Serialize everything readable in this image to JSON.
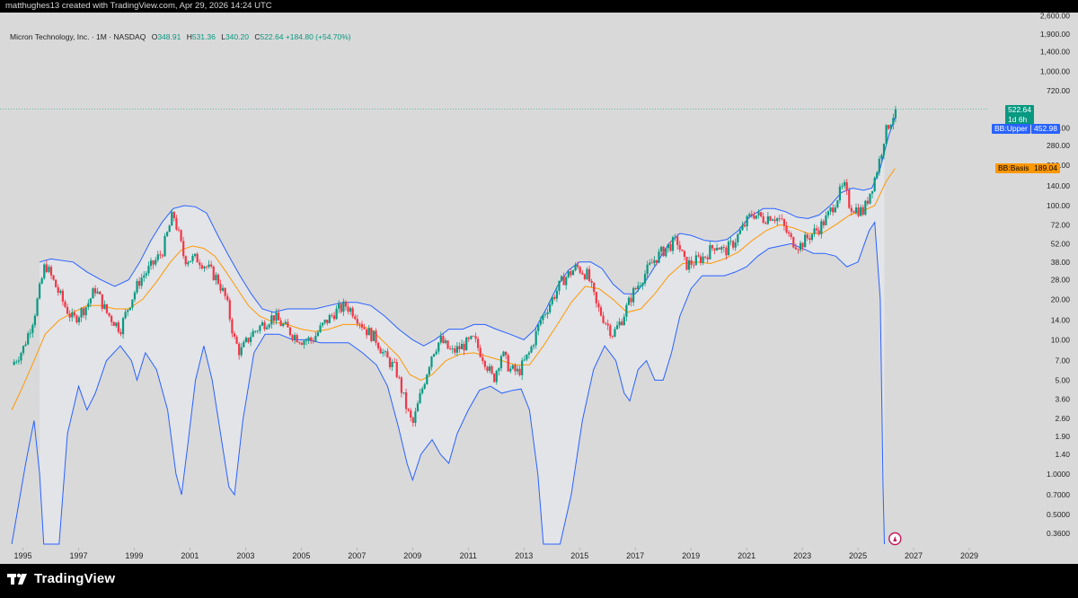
{
  "header": {
    "credit": "matthughes13 created with TradingView.com, Apr 29, 2026 14:24 UTC"
  },
  "legend": {
    "symbol": "Micron Technology, Inc. · 1M · NASDAQ",
    "o_label": "O",
    "o_value": "348.91",
    "h_label": "H",
    "h_value": "531.36",
    "l_label": "L",
    "l_value": "340.20",
    "c_label": "C",
    "c_value": "522.64",
    "change": "+184.80 (+54.70%)"
  },
  "price_tags": {
    "last_price": "522.64",
    "countdown": "1d 6h",
    "bb_upper_label": "BB:Upper",
    "bb_upper_value": "452.98",
    "bb_basis_label": "BB:Basis",
    "bb_basis_value": "189.04"
  },
  "footer": {
    "brand": "TradingView"
  },
  "colors": {
    "background": "#d9d9d9",
    "up": "#089981",
    "down": "#f23645",
    "band_line": "#2962ff",
    "basis_line": "#ff9800",
    "band_fill": "#e3e5ea"
  },
  "chart_data": {
    "type": "candlestick",
    "title": "Micron Technology, Inc. · 1M · NASDAQ",
    "y_scale": "log",
    "ylim": [
      0.3,
      2600
    ],
    "xlim": [
      1994.5,
      2030.0
    ],
    "y_ticks": [
      "2,600.00",
      "1,900.00",
      "1,400.00",
      "1,000.00",
      "720.00",
      "380.00",
      "280.00",
      "200.00",
      "140.00",
      "100.00",
      "72.00",
      "52.00",
      "38.00",
      "28.00",
      "20.00",
      "14.00",
      "10.00",
      "7.00",
      "5.00",
      "3.60",
      "2.60",
      "1.90",
      "1.40",
      "1.0000",
      "0.7000",
      "0.5000",
      "0.3600"
    ],
    "x_ticks": [
      "1995",
      "1997",
      "1999",
      "2001",
      "2003",
      "2005",
      "2007",
      "2009",
      "2011",
      "2013",
      "2015",
      "2017",
      "2019",
      "2021",
      "2023",
      "2025",
      "2027",
      "2029"
    ],
    "price_path": [
      [
        1994.6,
        6.5
      ],
      [
        1995.0,
        8.5
      ],
      [
        1995.4,
        15
      ],
      [
        1995.8,
        37
      ],
      [
        1996.0,
        30
      ],
      [
        1996.5,
        18
      ],
      [
        1996.8,
        14
      ],
      [
        1997.3,
        18
      ],
      [
        1997.6,
        24
      ],
      [
        1998.0,
        16
      ],
      [
        1998.5,
        12
      ],
      [
        1998.8,
        18
      ],
      [
        1999.2,
        28
      ],
      [
        1999.6,
        35
      ],
      [
        2000.0,
        45
      ],
      [
        2000.4,
        88
      ],
      [
        2000.6,
        60
      ],
      [
        2000.8,
        40
      ],
      [
        2001.3,
        40
      ],
      [
        2001.6,
        35
      ],
      [
        2002.0,
        28
      ],
      [
        2002.3,
        20
      ],
      [
        2002.6,
        10
      ],
      [
        2002.8,
        8
      ],
      [
        2003.2,
        11
      ],
      [
        2003.6,
        13
      ],
      [
        2004.0,
        15
      ],
      [
        2004.3,
        13
      ],
      [
        2004.7,
        11
      ],
      [
        2005.0,
        10
      ],
      [
        2005.4,
        10
      ],
      [
        2005.8,
        13
      ],
      [
        2006.2,
        16
      ],
      [
        2006.6,
        18
      ],
      [
        2006.9,
        16
      ],
      [
        2007.3,
        12
      ],
      [
        2007.7,
        10
      ],
      [
        2008.0,
        7.5
      ],
      [
        2008.4,
        6
      ],
      [
        2008.8,
        3
      ],
      [
        2009.0,
        2.3
      ],
      [
        2009.3,
        4
      ],
      [
        2009.7,
        8
      ],
      [
        2010.0,
        10
      ],
      [
        2010.4,
        8
      ],
      [
        2010.8,
        9
      ],
      [
        2011.2,
        10
      ],
      [
        2011.6,
        7
      ],
      [
        2011.9,
        5
      ],
      [
        2012.2,
        8
      ],
      [
        2012.5,
        6
      ],
      [
        2012.8,
        5.7
      ],
      [
        2013.2,
        8
      ],
      [
        2013.6,
        14
      ],
      [
        2014.0,
        20
      ],
      [
        2014.4,
        28
      ],
      [
        2014.9,
        35
      ],
      [
        2015.3,
        30
      ],
      [
        2015.6,
        18
      ],
      [
        2015.9,
        14
      ],
      [
        2016.2,
        11
      ],
      [
        2016.5,
        14
      ],
      [
        2016.9,
        22
      ],
      [
        2017.3,
        30
      ],
      [
        2017.7,
        40
      ],
      [
        2018.1,
        48
      ],
      [
        2018.5,
        55
      ],
      [
        2018.8,
        36
      ],
      [
        2019.1,
        38
      ],
      [
        2019.5,
        42
      ],
      [
        2019.9,
        52
      ],
      [
        2020.2,
        45
      ],
      [
        2020.5,
        52
      ],
      [
        2020.9,
        70
      ],
      [
        2021.2,
        88
      ],
      [
        2021.6,
        80
      ],
      [
        2021.9,
        85
      ],
      [
        2022.2,
        78
      ],
      [
        2022.6,
        55
      ],
      [
        2022.9,
        50
      ],
      [
        2023.2,
        58
      ],
      [
        2023.6,
        68
      ],
      [
        2023.9,
        82
      ],
      [
        2024.3,
        120
      ],
      [
        2024.5,
        140
      ],
      [
        2024.7,
        100
      ],
      [
        2024.9,
        95
      ],
      [
        2025.2,
        90
      ],
      [
        2025.4,
        120
      ],
      [
        2025.6,
        160
      ],
      [
        2025.8,
        230
      ],
      [
        2025.95,
        330
      ],
      [
        2026.1,
        400
      ],
      [
        2026.25,
        460
      ],
      [
        2026.33,
        522.64
      ]
    ],
    "bb_upper_path": [
      [
        1995.6,
        38
      ],
      [
        1996.0,
        40
      ],
      [
        1996.8,
        38
      ],
      [
        1997.3,
        32
      ],
      [
        1997.8,
        28
      ],
      [
        1998.3,
        25
      ],
      [
        1998.8,
        28
      ],
      [
        1999.2,
        38
      ],
      [
        1999.6,
        55
      ],
      [
        2000.0,
        75
      ],
      [
        2000.4,
        95
      ],
      [
        2000.8,
        100
      ],
      [
        2001.2,
        98
      ],
      [
        2001.6,
        88
      ],
      [
        2002.0,
        60
      ],
      [
        2002.4,
        42
      ],
      [
        2002.8,
        30
      ],
      [
        2003.2,
        22
      ],
      [
        2003.6,
        17
      ],
      [
        2004.0,
        16
      ],
      [
        2004.5,
        17
      ],
      [
        2005.0,
        17
      ],
      [
        2005.5,
        17
      ],
      [
        2006.0,
        18
      ],
      [
        2006.5,
        19
      ],
      [
        2007.0,
        19
      ],
      [
        2007.5,
        18
      ],
      [
        2008.0,
        15
      ],
      [
        2008.5,
        12
      ],
      [
        2009.0,
        10
      ],
      [
        2009.4,
        9
      ],
      [
        2009.8,
        10
      ],
      [
        2010.3,
        12
      ],
      [
        2010.8,
        12
      ],
      [
        2011.2,
        13
      ],
      [
        2011.6,
        13
      ],
      [
        2012.0,
        12
      ],
      [
        2012.5,
        11
      ],
      [
        2013.0,
        10
      ],
      [
        2013.4,
        12
      ],
      [
        2013.8,
        17
      ],
      [
        2014.2,
        25
      ],
      [
        2014.6,
        33
      ],
      [
        2015.0,
        38
      ],
      [
        2015.4,
        38
      ],
      [
        2015.8,
        34
      ],
      [
        2016.2,
        26
      ],
      [
        2016.6,
        22
      ],
      [
        2017.0,
        22
      ],
      [
        2017.4,
        28
      ],
      [
        2017.8,
        38
      ],
      [
        2018.2,
        52
      ],
      [
        2018.6,
        62
      ],
      [
        2019.0,
        60
      ],
      [
        2019.5,
        55
      ],
      [
        2019.9,
        54
      ],
      [
        2020.3,
        56
      ],
      [
        2020.7,
        65
      ],
      [
        2021.1,
        82
      ],
      [
        2021.6,
        95
      ],
      [
        2022.0,
        95
      ],
      [
        2022.4,
        90
      ],
      [
        2022.8,
        82
      ],
      [
        2023.2,
        80
      ],
      [
        2023.6,
        85
      ],
      [
        2024.0,
        100
      ],
      [
        2024.4,
        125
      ],
      [
        2024.8,
        135
      ],
      [
        2025.2,
        130
      ],
      [
        2025.5,
        135
      ],
      [
        2025.8,
        190
      ],
      [
        2026.1,
        330
      ],
      [
        2026.33,
        452.98
      ]
    ],
    "bb_basis_path": [
      [
        1994.6,
        3.0
      ],
      [
        1995.0,
        4.5
      ],
      [
        1995.4,
        7
      ],
      [
        1995.8,
        11
      ],
      [
        1996.3,
        14
      ],
      [
        1996.8,
        16
      ],
      [
        1997.3,
        18
      ],
      [
        1997.8,
        18
      ],
      [
        1998.3,
        17
      ],
      [
        1998.8,
        17
      ],
      [
        1999.3,
        20
      ],
      [
        1999.8,
        27
      ],
      [
        2000.3,
        38
      ],
      [
        2000.7,
        47
      ],
      [
        2001.1,
        50
      ],
      [
        2001.5,
        48
      ],
      [
        2001.9,
        42
      ],
      [
        2002.3,
        32
      ],
      [
        2002.7,
        24
      ],
      [
        2003.1,
        18
      ],
      [
        2003.5,
        15
      ],
      [
        2004.0,
        13.5
      ],
      [
        2004.5,
        13
      ],
      [
        2005.0,
        12
      ],
      [
        2005.5,
        11.5
      ],
      [
        2006.0,
        12
      ],
      [
        2006.5,
        13
      ],
      [
        2007.0,
        13
      ],
      [
        2007.5,
        12
      ],
      [
        2008.0,
        9.5
      ],
      [
        2008.5,
        7.5
      ],
      [
        2008.9,
        5.5
      ],
      [
        2009.3,
        5
      ],
      [
        2009.7,
        5.5
      ],
      [
        2010.2,
        7
      ],
      [
        2010.7,
        7.8
      ],
      [
        2011.2,
        8
      ],
      [
        2011.7,
        7.5
      ],
      [
        2012.2,
        7
      ],
      [
        2012.7,
        6.5
      ],
      [
        2013.2,
        6.5
      ],
      [
        2013.7,
        9
      ],
      [
        2014.2,
        13
      ],
      [
        2014.7,
        19
      ],
      [
        2015.2,
        25
      ],
      [
        2015.7,
        24
      ],
      [
        2016.2,
        20
      ],
      [
        2016.7,
        16
      ],
      [
        2017.2,
        17
      ],
      [
        2017.7,
        22
      ],
      [
        2018.2,
        30
      ],
      [
        2018.7,
        37
      ],
      [
        2019.2,
        38
      ],
      [
        2019.7,
        37
      ],
      [
        2020.2,
        40
      ],
      [
        2020.7,
        45
      ],
      [
        2021.2,
        55
      ],
      [
        2021.7,
        65
      ],
      [
        2022.2,
        72
      ],
      [
        2022.7,
        68
      ],
      [
        2023.2,
        62
      ],
      [
        2023.7,
        62
      ],
      [
        2024.2,
        72
      ],
      [
        2024.7,
        85
      ],
      [
        2025.2,
        92
      ],
      [
        2025.6,
        100
      ],
      [
        2026.0,
        150
      ],
      [
        2026.33,
        189.04
      ]
    ],
    "bb_lower_path": [
      [
        1994.6,
        0.3
      ],
      [
        1995.1,
        1.2
      ],
      [
        1995.4,
        2.5
      ],
      [
        1995.6,
        1.0
      ],
      [
        1995.75,
        0.3
      ],
      [
        1996.3,
        0.3
      ],
      [
        1996.6,
        2
      ],
      [
        1997.0,
        4.5
      ],
      [
        1997.3,
        3.0
      ],
      [
        1997.6,
        4
      ],
      [
        1998.0,
        7
      ],
      [
        1998.5,
        9
      ],
      [
        1998.9,
        7
      ],
      [
        1999.1,
        5
      ],
      [
        1999.4,
        8
      ],
      [
        1999.8,
        6
      ],
      [
        2000.2,
        3
      ],
      [
        2000.5,
        1.0
      ],
      [
        2000.7,
        0.7
      ],
      [
        2000.9,
        1.5
      ],
      [
        2001.2,
        5
      ],
      [
        2001.5,
        9
      ],
      [
        2001.8,
        5
      ],
      [
        2002.1,
        2
      ],
      [
        2002.4,
        0.8
      ],
      [
        2002.6,
        0.7
      ],
      [
        2002.9,
        2.5
      ],
      [
        2003.3,
        8
      ],
      [
        2003.7,
        11
      ],
      [
        2004.2,
        11
      ],
      [
        2004.7,
        10
      ],
      [
        2005.2,
        10
      ],
      [
        2005.7,
        9.5
      ],
      [
        2006.2,
        9.5
      ],
      [
        2006.7,
        9.5
      ],
      [
        2007.2,
        8
      ],
      [
        2007.7,
        6.5
      ],
      [
        2008.1,
        4.5
      ],
      [
        2008.5,
        2.2
      ],
      [
        2008.8,
        1.2
      ],
      [
        2009.0,
        0.9
      ],
      [
        2009.3,
        1.4
      ],
      [
        2009.7,
        1.8
      ],
      [
        2010.0,
        1.4
      ],
      [
        2010.3,
        1.2
      ],
      [
        2010.6,
        2
      ],
      [
        2011.0,
        3
      ],
      [
        2011.4,
        4.2
      ],
      [
        2011.8,
        4.5
      ],
      [
        2012.2,
        4
      ],
      [
        2012.6,
        4.2
      ],
      [
        2012.9,
        4.3
      ],
      [
        2013.2,
        3.0
      ],
      [
        2013.5,
        1.0
      ],
      [
        2013.7,
        0.3
      ],
      [
        2014.3,
        0.3
      ],
      [
        2014.7,
        0.7
      ],
      [
        2015.1,
        2.5
      ],
      [
        2015.5,
        6
      ],
      [
        2015.9,
        9
      ],
      [
        2016.3,
        7
      ],
      [
        2016.6,
        4
      ],
      [
        2016.8,
        3.5
      ],
      [
        2017.1,
        6
      ],
      [
        2017.4,
        7
      ],
      [
        2017.7,
        5
      ],
      [
        2018.0,
        5
      ],
      [
        2018.3,
        8
      ],
      [
        2018.6,
        15
      ],
      [
        2019.0,
        24
      ],
      [
        2019.4,
        30
      ],
      [
        2019.8,
        30
      ],
      [
        2020.2,
        30
      ],
      [
        2020.6,
        32
      ],
      [
        2021.0,
        35
      ],
      [
        2021.4,
        42
      ],
      [
        2021.8,
        48
      ],
      [
        2022.2,
        50
      ],
      [
        2022.6,
        52
      ],
      [
        2023.0,
        48
      ],
      [
        2023.4,
        44
      ],
      [
        2023.8,
        44
      ],
      [
        2024.2,
        42
      ],
      [
        2024.6,
        35
      ],
      [
        2025.0,
        38
      ],
      [
        2025.4,
        65
      ],
      [
        2025.6,
        75
      ],
      [
        2025.8,
        20
      ],
      [
        2025.9,
        0.8
      ],
      [
        2025.95,
        0.3
      ]
    ]
  }
}
